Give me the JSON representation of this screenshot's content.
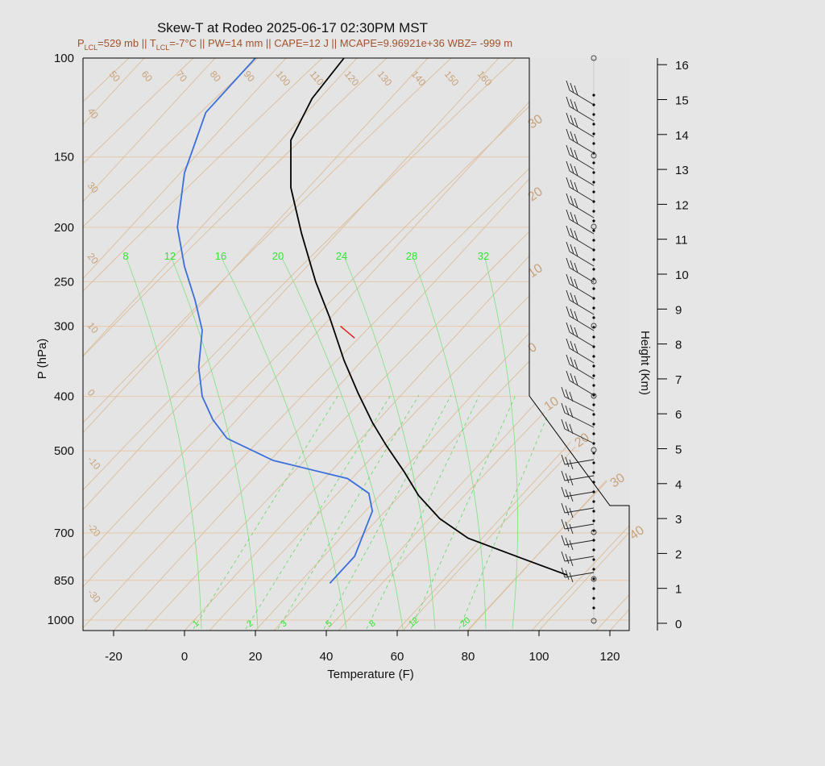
{
  "title": "Skew-T at Rodeo 2025-06-17 02:30PM MST",
  "subtitle_parts": {
    "p": "P",
    "lcl1": "LCL",
    "a": "=529 mb || T",
    "lcl2": "LCL",
    "b": "=-7°C || PW=14 mm || CAPE=12 J || MCAPE=9.96921e+36 WBZ= -999 m"
  },
  "chart_data": {
    "type": "line",
    "xlabel": "Temperature (F)",
    "ylabel": "P (hPa)",
    "y2label": "Height (Km)",
    "pressure_ticks": [
      "100",
      "150",
      "200",
      "250",
      "300",
      "400",
      "500",
      "700",
      "850",
      "1000"
    ],
    "temp_ticks": [
      "-20",
      "0",
      "20",
      "40",
      "60",
      "80",
      "100",
      "120"
    ],
    "height_ticks": [
      "0",
      "1",
      "2",
      "3",
      "4",
      "5",
      "6",
      "7",
      "8",
      "9",
      "10",
      "11",
      "12",
      "13",
      "14",
      "15",
      "16"
    ],
    "dry_adiabat_labels": [
      "50",
      "60",
      "70",
      "80",
      "90",
      "100",
      "110",
      "120",
      "130",
      "140",
      "150",
      "160"
    ],
    "isotherm_labels_left": [
      "40",
      "30",
      "20",
      "10",
      "0",
      "-10",
      "-20",
      "-30"
    ],
    "isotherm_labels_right": [
      "30",
      "20",
      "10",
      "0",
      "10",
      "20",
      "30",
      "40"
    ],
    "moist_adiabat_labels": [
      "8",
      "12",
      "16",
      "20",
      "24",
      "28",
      "32"
    ],
    "mixing_ratio_labels": [
      "1",
      "2",
      "3",
      "5",
      "8",
      "12",
      "20"
    ],
    "series": [
      {
        "name": "temperature",
        "color": "#000000",
        "points": [
          [
            108,
            832
          ],
          [
            96,
            780
          ],
          [
            80,
            715
          ],
          [
            72,
            660
          ],
          [
            66,
            600
          ],
          [
            62,
            545
          ],
          [
            57,
            490
          ],
          [
            53,
            445
          ],
          [
            49,
            395
          ],
          [
            45,
            345
          ],
          [
            41,
            290
          ],
          [
            37,
            250
          ],
          [
            33,
            205
          ],
          [
            30,
            170
          ],
          [
            30,
            140
          ],
          [
            36,
            118
          ],
          [
            45,
            100
          ]
        ]
      },
      {
        "name": "dewpoint",
        "color": "#3a6fdc",
        "points": [
          [
            41,
            860
          ],
          [
            48,
            770
          ],
          [
            53,
            640
          ],
          [
            52,
            595
          ],
          [
            46,
            560
          ],
          [
            25,
            520
          ],
          [
            12,
            475
          ],
          [
            8,
            440
          ],
          [
            5,
            400
          ],
          [
            4,
            355
          ],
          [
            5,
            305
          ],
          [
            3,
            270
          ],
          [
            0,
            235
          ],
          [
            -2,
            200
          ],
          [
            0,
            160
          ],
          [
            6,
            125
          ],
          [
            20,
            100
          ]
        ]
      },
      {
        "name": "parcel-segment",
        "color": "#e02020",
        "points": [
          [
            44,
            300
          ],
          [
            48,
            315
          ]
        ]
      }
    ]
  },
  "colors": {
    "background": "#e6e6e6",
    "plot_bg": "#e4e4e4",
    "isobar": "#e8c8a8",
    "dry_adiabat": "#c8a27a",
    "moist": "#2ee62e"
  }
}
